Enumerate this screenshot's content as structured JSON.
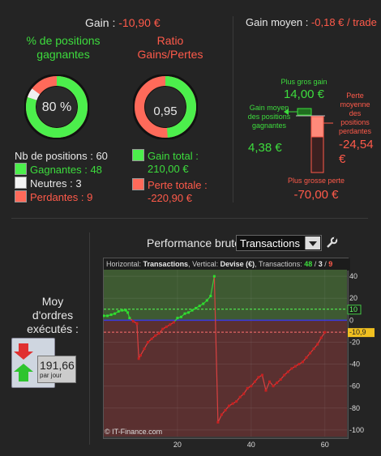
{
  "gain": {
    "label": "Gain : ",
    "value": "-10,90 €"
  },
  "gain_moyen": {
    "label": "Gain moyen : ",
    "value": "-0,18 € / trade"
  },
  "pct_gagnantes": {
    "title": "% de positions gagnantes",
    "value_text": "80 %",
    "fraction": 0.8,
    "neutral_fraction": 0.05
  },
  "ratio": {
    "title": "Ratio Gains/Pertes",
    "value_text": "0,95",
    "gain_fraction": 0.487
  },
  "positions": {
    "nb_label": "Nb de positions : 60",
    "gagnantes": "Gagnantes : 48",
    "neutres": "Neutres : 3",
    "perdantes": "Perdantes : 9"
  },
  "totals": {
    "gain_label": "Gain total :",
    "gain_value": "210,00 €",
    "perte_label": "Perte totale :",
    "perte_value": "-220,90 €"
  },
  "moyen_panel": {
    "plus_gros_gain_label": "Plus gros gain",
    "plus_gros_gain_value": "14,00 €",
    "gain_moyen_label": "Gain moyen des positions gagnantes",
    "gain_moyen_value": "4,38 €",
    "perte_moyenne_label": "Perte moyenne des positions perdantes",
    "perte_moyenne_value": "-24,54 €",
    "plus_grosse_perte_label": "Plus grosse perte",
    "plus_grosse_perte_value": "-70,00 €"
  },
  "moy_ordres": {
    "label": "Moy d'ordres exécutés :",
    "value": "191,66",
    "unit": "par jour"
  },
  "perf": {
    "label": "Performance brute",
    "selected": "Transactions"
  },
  "chart_header": {
    "h_label": "Horizontal:",
    "h_value": "Transactions",
    "v_label": "Vertical:",
    "v_value": "Devise (€)",
    "t_label": "Transactions:",
    "t_win": "48",
    "t_sep1": " / ",
    "t_neutral": "3",
    "t_sep2": " / ",
    "t_lose": "9"
  },
  "copyright": "© IT-Finance.com",
  "colors": {
    "green": "#3ddc3d",
    "red": "#ff5a4a",
    "bg": "#242424"
  },
  "chart_data": {
    "type": "line",
    "xlim": [
      0,
      66
    ],
    "ylim": [
      -106,
      46
    ],
    "x_ticks": [
      "20",
      "40",
      "60"
    ],
    "x_tick_values": [
      20,
      40,
      60
    ],
    "y_ticks": [
      "40",
      "20",
      "0",
      "-20",
      "-40",
      "-60",
      "-80",
      "-100"
    ],
    "y_tick_values": [
      40,
      20,
      0,
      -20,
      -40,
      -60,
      -80,
      -100
    ],
    "marker_labels": [
      {
        "value": 10,
        "text": "10"
      },
      {
        "value": -10.9,
        "text": "-10,9"
      }
    ],
    "blue_line_value": 0,
    "series": [
      {
        "points": [
          [
            0,
            4
          ],
          [
            1,
            4
          ],
          [
            2,
            5
          ],
          [
            3,
            6
          ],
          [
            4,
            8
          ],
          [
            5,
            9
          ],
          [
            6,
            9
          ],
          [
            6.5,
            7
          ],
          [
            7,
            2
          ],
          [
            8,
            -1
          ],
          [
            9,
            -3
          ],
          [
            9.5,
            -35
          ],
          [
            10,
            -32
          ],
          [
            11,
            -26
          ],
          [
            12,
            -20
          ],
          [
            13,
            -17
          ],
          [
            14,
            -14
          ],
          [
            15,
            -12
          ],
          [
            16,
            -8
          ],
          [
            17,
            -6
          ],
          [
            18,
            -4
          ],
          [
            19,
            -2
          ],
          [
            20,
            2
          ],
          [
            21,
            3
          ],
          [
            22,
            6
          ],
          [
            23,
            7
          ],
          [
            24,
            9
          ],
          [
            25,
            11
          ],
          [
            26,
            13
          ],
          [
            27,
            15
          ],
          [
            28,
            18
          ],
          [
            29,
            22
          ],
          [
            30,
            40
          ],
          [
            31,
            -93
          ],
          [
            32,
            -86
          ],
          [
            33,
            -82
          ],
          [
            34,
            -78
          ],
          [
            35,
            -76
          ],
          [
            36,
            -74
          ],
          [
            37,
            -70
          ],
          [
            38,
            -67
          ],
          [
            39,
            -62
          ],
          [
            40,
            -60
          ],
          [
            41,
            -56
          ],
          [
            42,
            -52
          ],
          [
            43,
            -50
          ],
          [
            44,
            -64
          ],
          [
            45,
            -56
          ],
          [
            46,
            -60
          ],
          [
            47,
            -57
          ],
          [
            48,
            -54
          ],
          [
            49,
            -50
          ],
          [
            50,
            -47
          ],
          [
            51,
            -44
          ],
          [
            52,
            -42
          ],
          [
            53,
            -40
          ],
          [
            54,
            -38
          ],
          [
            55,
            -34
          ],
          [
            56,
            -30
          ],
          [
            57,
            -26
          ],
          [
            58,
            -22
          ],
          [
            59,
            -16
          ],
          [
            60,
            -11
          ]
        ]
      }
    ]
  }
}
